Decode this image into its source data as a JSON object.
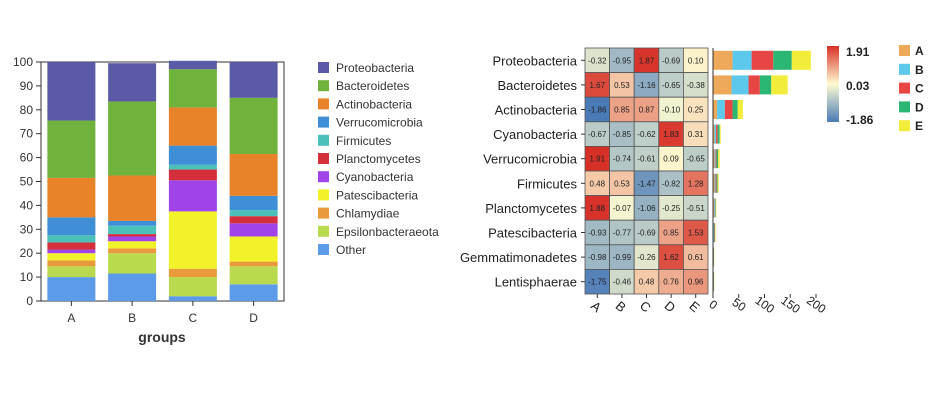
{
  "chart_data": [
    {
      "type": "bar",
      "stacked": true,
      "categories": [
        "A",
        "B",
        "C",
        "D"
      ],
      "xlabel": "groups",
      "ylabel": "",
      "ylim": [
        0,
        100
      ],
      "yticks": [
        "0",
        "10",
        "20",
        "30",
        "40",
        "50",
        "60",
        "70",
        "80",
        "90",
        "100"
      ],
      "legend_position": "right",
      "series": [
        {
          "name": "Other",
          "color": "#5b9be8",
          "values": [
            10,
            11.5,
            2,
            7
          ]
        },
        {
          "name": "Epsilonbacteraeota",
          "color": "#b9d94f",
          "values": [
            4.5,
            8.5,
            8,
            7.5
          ]
        },
        {
          "name": "Chlamydiae",
          "color": "#e99b3c",
          "values": [
            2.5,
            2,
            3.5,
            2
          ]
        },
        {
          "name": "Patescibacteria",
          "color": "#f2f22b",
          "values": [
            3,
            3,
            24,
            10.5
          ]
        },
        {
          "name": "Cyanobacteria",
          "color": "#a043e8",
          "values": [
            1.5,
            2,
            13,
            5.5
          ]
        },
        {
          "name": "Planctomycetes",
          "color": "#d62f3c",
          "values": [
            3,
            1,
            4.5,
            3
          ]
        },
        {
          "name": "Firmicutes",
          "color": "#4bc0b8",
          "values": [
            3,
            3.5,
            2,
            2.5
          ]
        },
        {
          "name": "Verrucomicrobia",
          "color": "#3e8fd6",
          "values": [
            7.5,
            2,
            8,
            6
          ]
        },
        {
          "name": "Actinobacteria",
          "color": "#e8832a",
          "values": [
            16.5,
            19,
            16,
            17.5
          ]
        },
        {
          "name": "Bacteroidetes",
          "color": "#6fb33c",
          "values": [
            24,
            31,
            16,
            23.5
          ]
        },
        {
          "name": "Proteobacteria",
          "color": "#5a5aa6",
          "values": [
            24.5,
            16,
            3.5,
            15
          ]
        }
      ],
      "legend_order": [
        "Proteobacteria",
        "Bacteroidetes",
        "Actinobacteria",
        "Verrucomicrobia",
        "Firmicutes",
        "Planctomycetes",
        "Cyanobacteria",
        "Patescibacteria",
        "Chlamydiae",
        "Epsilonbacteraeota",
        "Other"
      ]
    },
    {
      "type": "heatmap",
      "rows": [
        "Proteobacteria",
        "Bacteroidetes",
        "Actinobacteria",
        "Cyanobacteria",
        "Verrucomicrobia",
        "Firmicutes",
        "Planctomycetes",
        "Patescibacteria",
        "Gemmatimonadetes",
        "Lentisphaerae"
      ],
      "columns": [
        "A",
        "B",
        "C",
        "D",
        "E"
      ],
      "values": [
        [
          "-0.32",
          "-0.95",
          "1.87",
          "-0.69",
          "0.10"
        ],
        [
          "1.67",
          "0.53",
          "-1.16",
          "-0.65",
          "-0.38"
        ],
        [
          "-1.86",
          "0.85",
          "0.87",
          "-0.10",
          "0.25"
        ],
        [
          "-0.67",
          "-0.85",
          "-0.62",
          "1.83",
          "0.31"
        ],
        [
          "1.91",
          "-0.74",
          "-0.61",
          "0.09",
          "-0.65"
        ],
        [
          "0.48",
          "0.53",
          "-1.47",
          "-0.82",
          "1.28"
        ],
        [
          "1.88",
          "-0.07",
          "-1.06",
          "-0.25",
          "-0.51"
        ],
        [
          "-0.93",
          "-0.77",
          "-0.69",
          "0.85",
          "1.53"
        ],
        [
          "-0.98",
          "-0.99",
          "-0.26",
          "1.62",
          "0.61"
        ],
        [
          "-1.75",
          "-0.46",
          "0.48",
          "0.76",
          "0.96"
        ]
      ],
      "color_scale": {
        "max_label": "1.91",
        "mid_label": "0.03",
        "min_label": "-1.86",
        "max": 1.91,
        "mid": 0.03,
        "min": -1.86,
        "colors": [
          "#4a7bb7",
          "#fdfbd2",
          "#d73027"
        ]
      }
    },
    {
      "type": "bar",
      "orientation": "horizontal",
      "stacked": true,
      "categories": [
        "Proteobacteria",
        "Bacteroidetes",
        "Actinobacteria",
        "Cyanobacteria",
        "Verrucomicrobia",
        "Firmicutes",
        "Planctomycetes",
        "Patescibacteria",
        "Gemmatimonadetes",
        "Lentisphaerae"
      ],
      "xlim": [
        0,
        200
      ],
      "xticks": [
        "0",
        "50",
        "100",
        "150",
        "200"
      ],
      "legend_position": "right",
      "series": [
        {
          "name": "A",
          "color": "#eda85a",
          "values": [
            38,
            36,
            8,
            3,
            3,
            3,
            2,
            1,
            0.5,
            0.5
          ]
        },
        {
          "name": "B",
          "color": "#5bc8ec",
          "values": [
            37,
            33,
            15,
            3,
            2,
            2,
            1.5,
            1,
            0.5,
            0.5
          ]
        },
        {
          "name": "C",
          "color": "#e84545",
          "values": [
            42,
            22,
            15,
            3,
            2,
            2,
            1,
            1,
            0.5,
            0.5
          ]
        },
        {
          "name": "D",
          "color": "#2bb673",
          "values": [
            36,
            22,
            10,
            4,
            3,
            2,
            1,
            1,
            0.5,
            0.5
          ]
        },
        {
          "name": "E",
          "color": "#f2ec3a",
          "values": [
            37,
            32,
            10,
            2,
            3,
            2,
            1,
            1,
            0.5,
            0.5
          ]
        }
      ]
    }
  ]
}
